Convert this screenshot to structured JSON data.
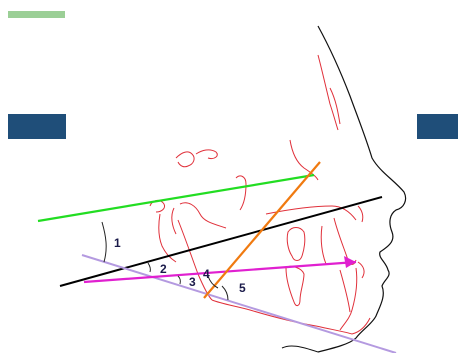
{
  "angle_labels": {
    "angle_1": "1",
    "angle_2": "2",
    "angle_3": "3",
    "angle_4": "4",
    "angle_5": "5"
  },
  "colors": {
    "header_bar": "#9bcf96",
    "side_blocks": "#1f4e79",
    "tracing": "#e0303a",
    "green_line": "#22dd22",
    "black_line": "#000000",
    "lavender_line": "#b49ae0",
    "magenta_line": "#e020d0",
    "orange_line": "#f07a10",
    "profile": "#111111"
  }
}
